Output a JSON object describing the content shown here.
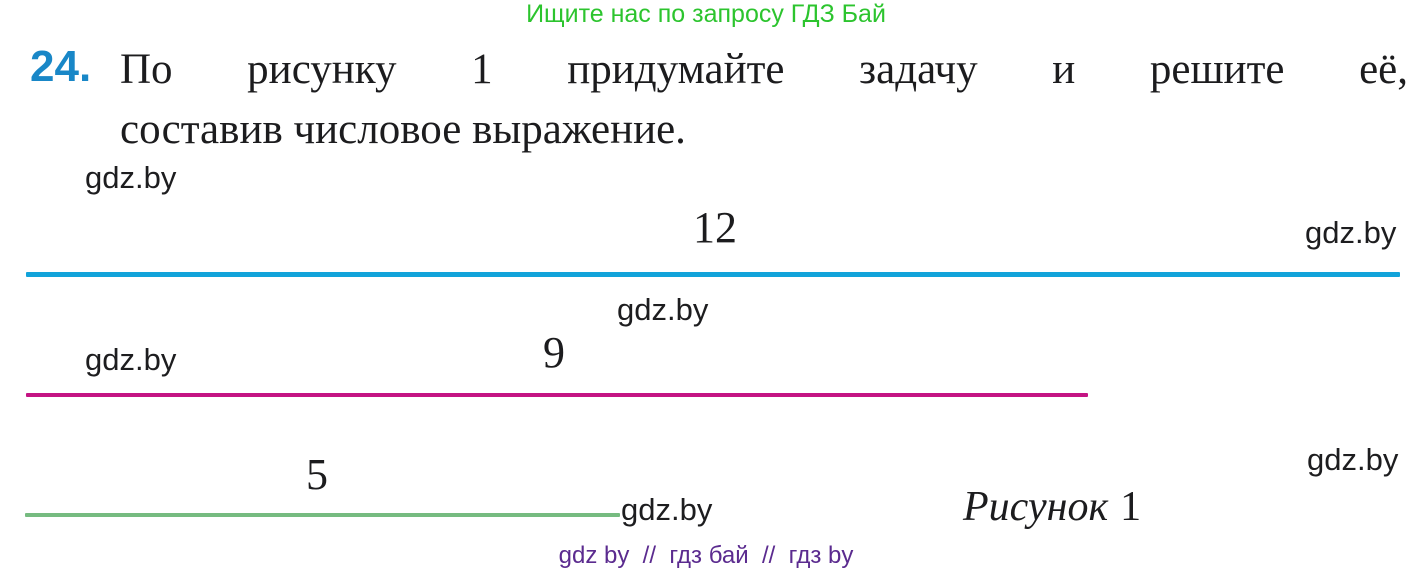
{
  "header": {
    "promo_text": "Ищите нас по запросу ГДЗ Бай",
    "promo_color": "#2cc42e"
  },
  "problem": {
    "number": "24.",
    "number_color": "#1987c7",
    "text_line1": "По рисунку 1 придумайте задачу и решите её,",
    "text_line2": "составив числовое выражение."
  },
  "watermark": {
    "text": "gdz.by"
  },
  "figure": {
    "caption_word": "Рисунок",
    "caption_number": "1",
    "segments": [
      {
        "label": "12",
        "color": "#12a3da"
      },
      {
        "label": "9",
        "color": "#c41483"
      },
      {
        "label": "5",
        "color": "#76bb80"
      }
    ]
  },
  "footer": {
    "tags_text": "gdz by  //  гдз бай  //  гдз by",
    "tags_color": "#5b2b8f"
  }
}
